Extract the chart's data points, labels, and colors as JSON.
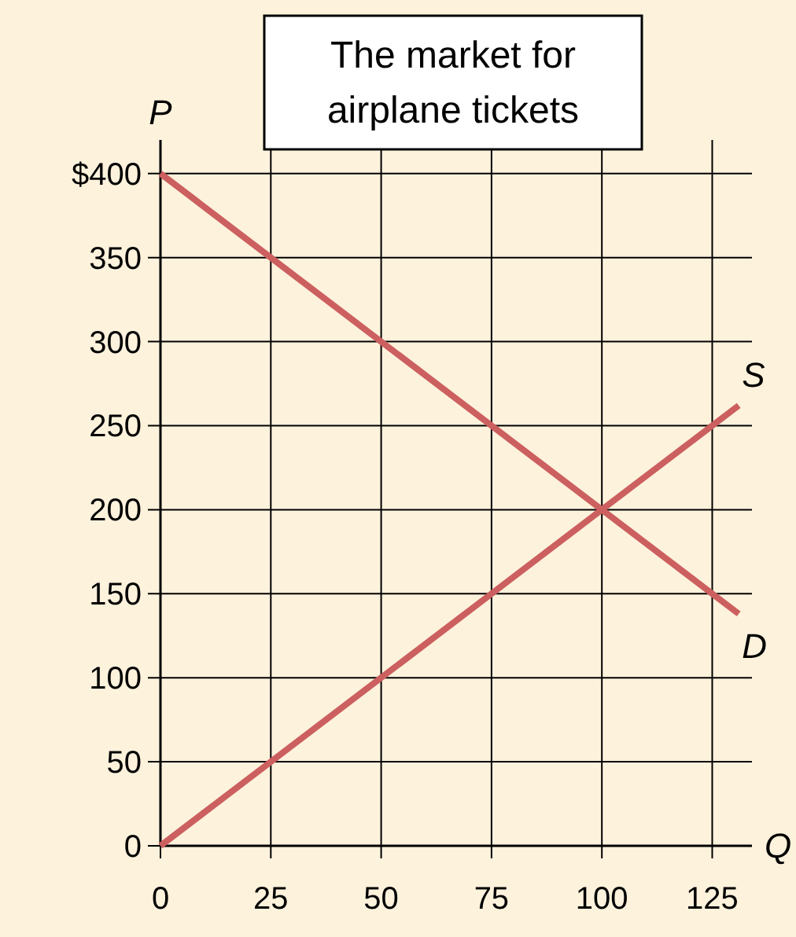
{
  "chart_data": {
    "type": "line",
    "title": "The market for airplane tickets",
    "xlabel": "Q",
    "ylabel": "P",
    "x": [
      0,
      131
    ],
    "series": [
      {
        "name": "S",
        "color": "#cc5f5f",
        "values": [
          0,
          262
        ]
      },
      {
        "name": "D",
        "color": "#cc5f5f",
        "values": [
          400,
          138
        ]
      }
    ],
    "xlim": [
      0,
      134
    ],
    "xticks": [
      0,
      25,
      50,
      75,
      100,
      125
    ],
    "ylim": [
      0,
      420
    ],
    "yticks": [
      0,
      50,
      100,
      150,
      200,
      250,
      300,
      350,
      {
        "value": 400,
        "label": "$400"
      }
    ],
    "grid": true,
    "marker": "none",
    "line_style": "solid"
  }
}
